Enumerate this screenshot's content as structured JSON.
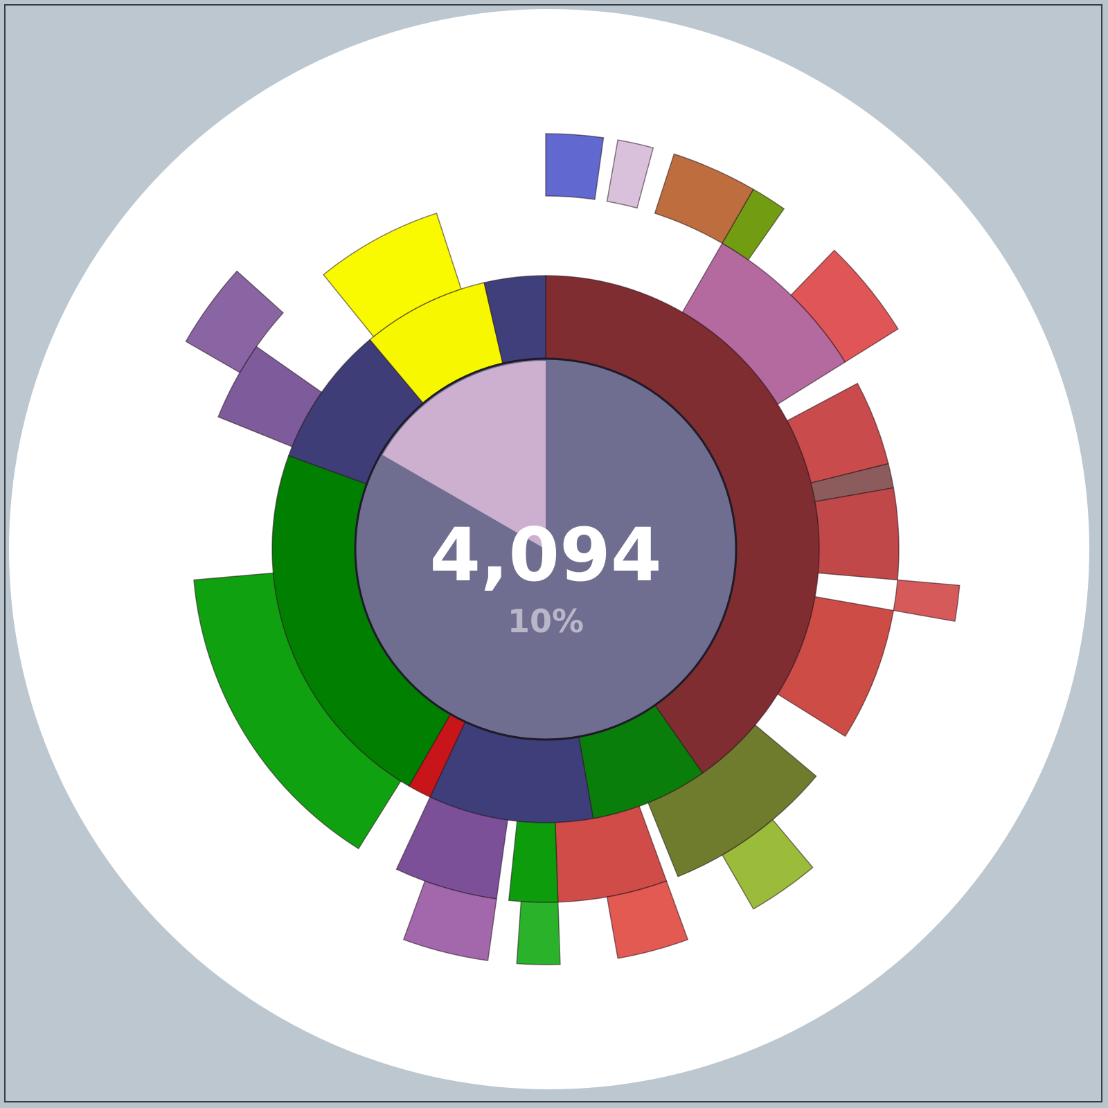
{
  "center": {
    "value": "4,094",
    "caption": "10%"
  },
  "colors": {
    "background": "#bcc7cf",
    "disc": "#ffffff",
    "core": "#6f6e90",
    "core_highlight": "#d2b2d4"
  },
  "rings": [
    [
      {
        "start": 0,
        "end": 145,
        "color": "#7f2d30",
        "name": "red-group"
      },
      {
        "start": 145,
        "end": 170,
        "color": "#0a7e0a",
        "name": "green-group"
      },
      {
        "start": 170,
        "end": 205,
        "color": "#3d3e7a",
        "name": "blue-group"
      },
      {
        "start": 205,
        "end": 210,
        "color": "#c8151a",
        "name": "red-small"
      },
      {
        "start": 210,
        "end": 290,
        "color": "#017f01",
        "name": "green-main"
      },
      {
        "start": 290,
        "end": 320,
        "color": "#3e3d78",
        "name": "blue-small"
      },
      {
        "start": 320,
        "end": 347,
        "color": "#f7f700",
        "name": "yellow-slice"
      },
      {
        "start": 347,
        "end": 360,
        "color": "#3f3f7c",
        "name": "navy-slice"
      }
    ],
    [
      {
        "start": 62,
        "end": 76,
        "color": "#c94b4b",
        "name": "red-leaf-a"
      },
      {
        "start": 76,
        "end": 80,
        "color": "#8c5c5c",
        "name": "mauve-leaf"
      },
      {
        "start": 80,
        "end": 95,
        "color": "#c04848",
        "name": "red-leaf-b"
      },
      {
        "start": 100,
        "end": 122,
        "color": "#cd4c46",
        "name": "red-leaf-c"
      },
      {
        "start": 130,
        "end": 158,
        "color": "#6f7c2e",
        "name": "olive-leaf"
      },
      {
        "start": 160,
        "end": 178,
        "color": "#cf4c48",
        "name": "red-leaf-d"
      },
      {
        "start": 178,
        "end": 186,
        "color": "#0c9c0c",
        "name": "green-leaf"
      },
      {
        "start": 188,
        "end": 205,
        "color": "#7b5099",
        "name": "purple-leaf"
      },
      {
        "start": 212,
        "end": 265,
        "color": "#0fa10f",
        "name": "green-outer"
      },
      {
        "start": 292,
        "end": 305,
        "color": "#7e5b9a",
        "name": "purple-outer"
      },
      {
        "start": 321,
        "end": 342,
        "color": "#f9f900",
        "name": "yellow-outer"
      },
      {
        "start": 30,
        "end": 58,
        "color": "#b46a9e",
        "name": "pink-leaf"
      }
    ],
    [
      {
        "start": 18,
        "end": 30,
        "color": "#bd6d3e",
        "name": "orange-leaf"
      },
      {
        "start": 30,
        "end": 35,
        "color": "#729d12",
        "name": "lime-leaf"
      },
      {
        "start": 44,
        "end": 58,
        "color": "#e05656",
        "name": "coral-leaf"
      },
      {
        "start": 95,
        "end": 100,
        "color": "#d65a5a",
        "name": "salmon-leaf"
      },
      {
        "start": 140,
        "end": 150,
        "color": "#9bbb3a",
        "name": "lime-outer"
      },
      {
        "start": 160,
        "end": 170,
        "color": "#e25a52",
        "name": "coral-outer"
      },
      {
        "start": 178,
        "end": 184,
        "color": "#2bb22b",
        "name": "bright-green"
      },
      {
        "start": 188,
        "end": 200,
        "color": "#a268ab",
        "name": "violet-outer"
      },
      {
        "start": 300,
        "end": 312,
        "color": "#8a65a4",
        "name": "violet-top"
      },
      {
        "start": 0,
        "end": 8,
        "color": "#6168cf",
        "name": "blue-top"
      },
      {
        "start": 10,
        "end": 15,
        "color": "#d9c0db",
        "name": "pale-top"
      }
    ]
  ]
}
